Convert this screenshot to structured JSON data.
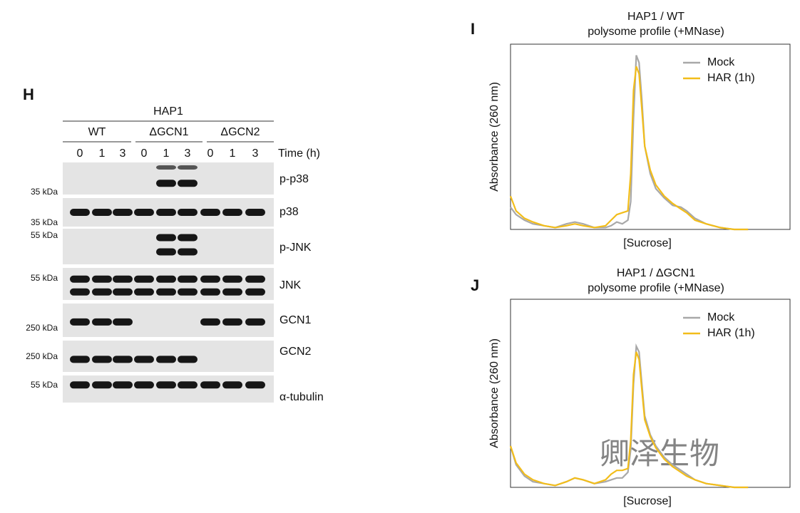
{
  "blot": {
    "label": "H",
    "cell_line": "HAP1",
    "groups": [
      "WT",
      "ΔGCN1",
      "ΔGCN2"
    ],
    "times": [
      "0",
      "1",
      "3",
      "0",
      "1",
      "3",
      "0",
      "1",
      "3"
    ],
    "time_label": "Time (h)",
    "rows": [
      "p-p38",
      "p38",
      "p-JNK",
      "JNK",
      "GCN1",
      "GCN2",
      "α-tubulin"
    ],
    "markers": [
      "35 kDa",
      "35 kDa",
      "55 kDa",
      "55 kDa",
      "250 kDa",
      "250 kDa",
      "55 kDa"
    ]
  },
  "watermark": "卿泽生物",
  "chart_data": [
    {
      "type": "line",
      "label": "I",
      "title": "HAP1 / WT",
      "subtitle": "polysome profile (+MNase)",
      "x_label": "[Sucrose]",
      "y_label": "Absorbance (260 nm)",
      "legend": "upper right",
      "xlim": [
        0,
        100
      ],
      "ylim": [
        0,
        100
      ],
      "x": [
        0,
        2,
        5,
        8,
        12,
        16,
        20,
        23,
        26,
        30,
        34,
        36,
        38,
        40,
        42,
        43,
        44,
        45,
        46,
        47,
        48,
        50,
        52,
        55,
        58,
        61,
        63,
        66,
        70,
        75,
        80,
        85
      ],
      "series": [
        {
          "name": "Mock",
          "color": "#a8a8a8",
          "values": [
            12,
            8,
            5,
            3,
            2,
            1,
            3,
            4,
            3,
            1,
            1,
            2,
            4,
            3,
            5,
            15,
            60,
            94,
            90,
            70,
            45,
            30,
            22,
            17,
            13,
            12,
            10,
            6,
            3,
            1,
            0,
            0
          ]
        },
        {
          "name": "HAR (1h)",
          "color": "#f2bd1a",
          "values": [
            18,
            10,
            6,
            4,
            2,
            1,
            2,
            3,
            2,
            1,
            2,
            5,
            8,
            9,
            10,
            30,
            75,
            88,
            84,
            65,
            45,
            32,
            24,
            18,
            14,
            11,
            9,
            5,
            3,
            1,
            0,
            0
          ]
        }
      ]
    },
    {
      "type": "line",
      "label": "J",
      "title": "HAP1 / ΔGCN1",
      "subtitle": "polysome profile (+MNase)",
      "x_label": "[Sucrose]",
      "y_label": "Absorbance (260 nm)",
      "legend": "upper right",
      "xlim": [
        0,
        100
      ],
      "ylim": [
        0,
        100
      ],
      "x": [
        0,
        2,
        5,
        8,
        12,
        16,
        20,
        23,
        26,
        30,
        34,
        36,
        38,
        40,
        42,
        43,
        44,
        45,
        46,
        47,
        48,
        50,
        52,
        55,
        58,
        61,
        63,
        66,
        70,
        75,
        80,
        85
      ],
      "series": [
        {
          "name": "Mock",
          "color": "#a8a8a8",
          "values": [
            22,
            12,
            6,
            3,
            2,
            1,
            3,
            5,
            4,
            2,
            3,
            4,
            5,
            5,
            8,
            20,
            55,
            75,
            72,
            55,
            38,
            28,
            22,
            16,
            12,
            9,
            7,
            4,
            2,
            1,
            0,
            0
          ]
        },
        {
          "name": "HAR (1h)",
          "color": "#f2bd1a",
          "values": [
            22,
            13,
            7,
            4,
            2,
            1,
            3,
            5,
            4,
            2,
            4,
            7,
            9,
            9,
            10,
            25,
            60,
            72,
            68,
            52,
            36,
            27,
            21,
            15,
            11,
            8,
            6,
            4,
            2,
            1,
            0,
            0
          ]
        }
      ]
    }
  ]
}
